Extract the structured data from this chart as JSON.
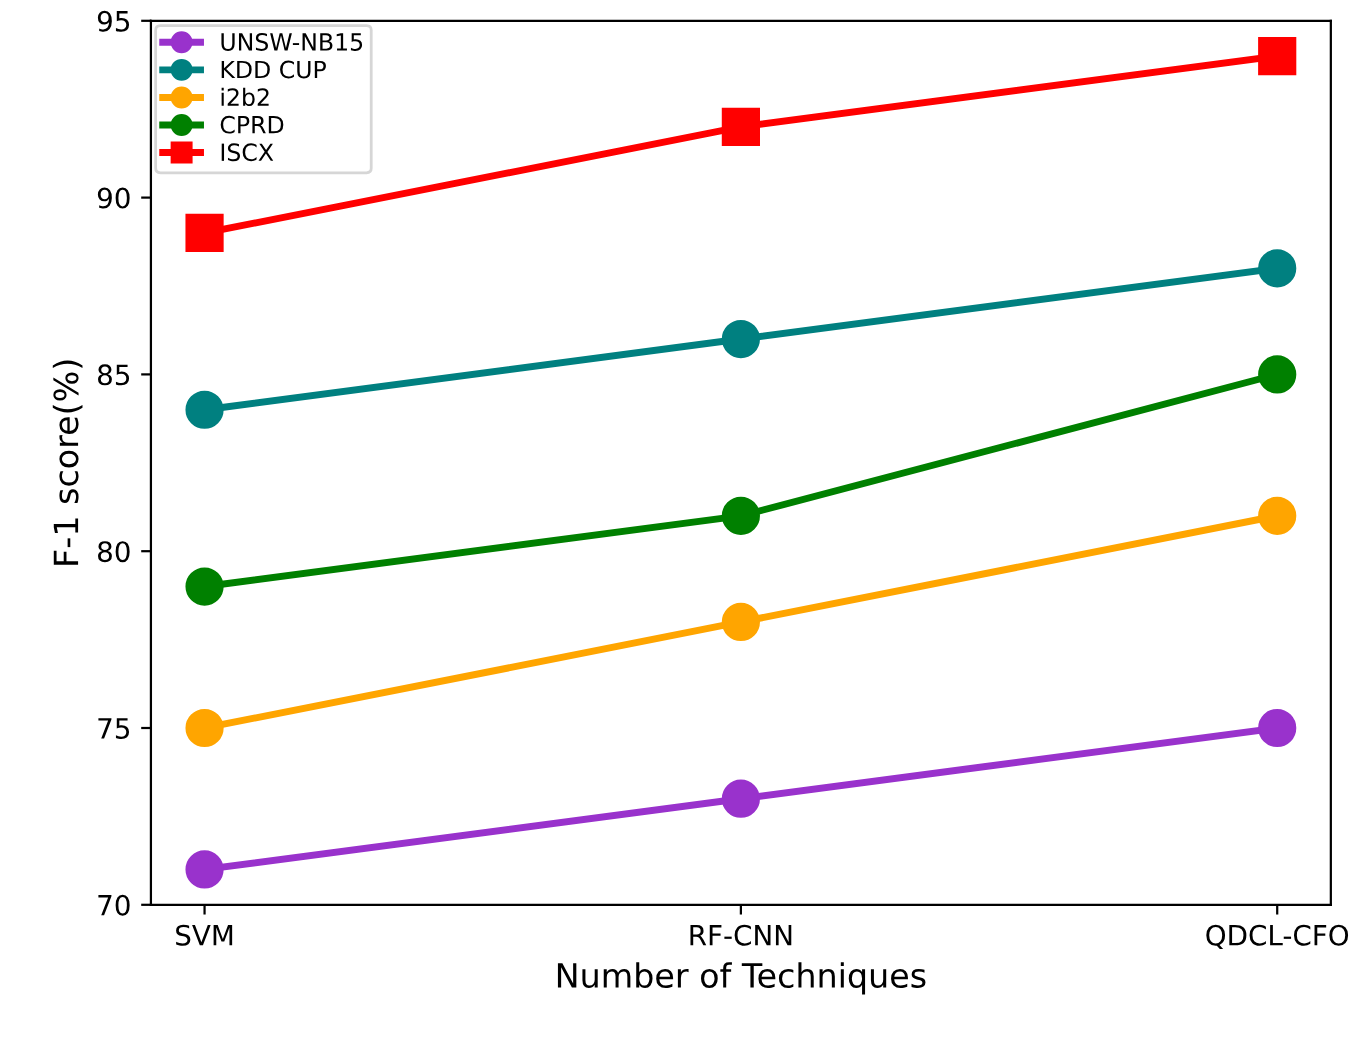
{
  "chart_data": {
    "type": "line",
    "xlabel": "Number of Techniques",
    "ylabel": "F-1 score(%)",
    "categories": [
      "SVM",
      "RF-CNN",
      "QDCL-CFO"
    ],
    "series": [
      {
        "name": "UNSW-NB15",
        "color": "#9932cc",
        "marker": "circle",
        "values": [
          71,
          73,
          75
        ]
      },
      {
        "name": "KDD CUP",
        "color": "#008080",
        "marker": "circle",
        "values": [
          84,
          86,
          88
        ]
      },
      {
        "name": "i2b2",
        "color": "#ffa500",
        "marker": "circle",
        "values": [
          75,
          78,
          81
        ]
      },
      {
        "name": "CPRD",
        "color": "#008000",
        "marker": "circle",
        "values": [
          79,
          81,
          85
        ]
      },
      {
        "name": "ISCX",
        "color": "#ff0000",
        "marker": "square",
        "values": [
          89,
          92,
          94
        ]
      }
    ],
    "ylim": [
      70,
      95
    ],
    "yticks": [
      70,
      75,
      80,
      85,
      90,
      95
    ],
    "legend": "top left",
    "grid": false
  }
}
